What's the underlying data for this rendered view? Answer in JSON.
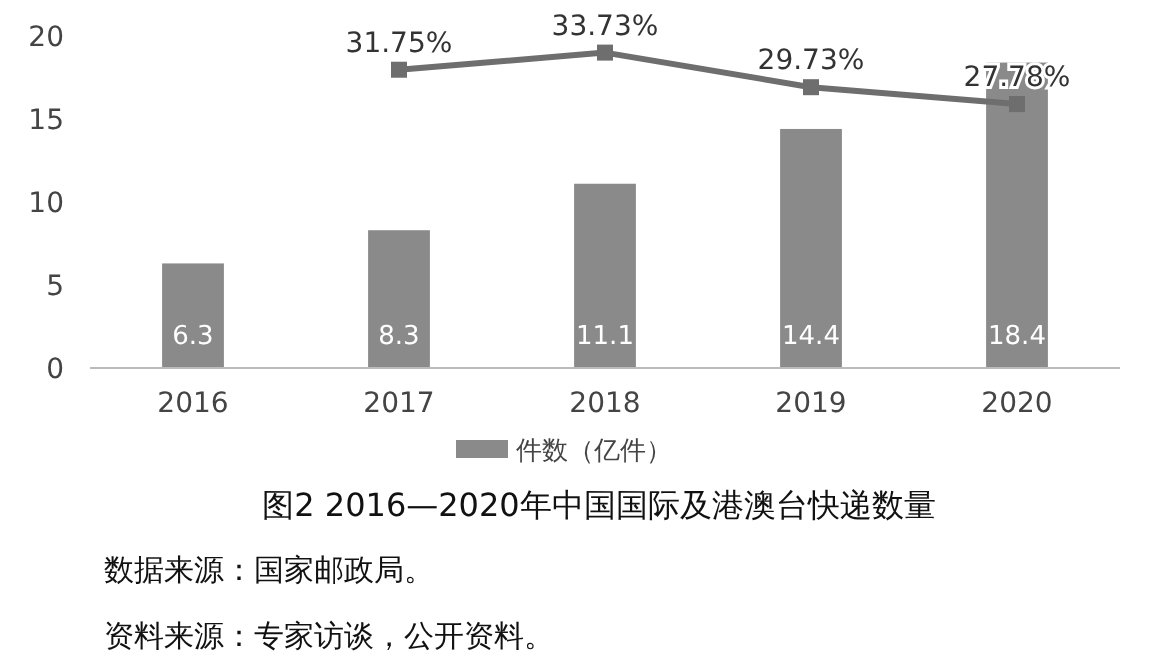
{
  "chart_data": {
    "type": "bar",
    "title": "图2  2016—2020年中国国际及港澳台快递数量",
    "categories": [
      "2016",
      "2017",
      "2018",
      "2019",
      "2020"
    ],
    "series": [
      {
        "name": "件数（亿件）",
        "color": "#8a8a8a",
        "values": [
          6.3,
          8.3,
          11.1,
          14.4,
          18.4
        ],
        "value_labels": [
          "6.3",
          "8.3",
          "11.1",
          "14.4",
          "18.4"
        ]
      },
      {
        "type": "line",
        "axis": "y2",
        "color": "#6e6e6e",
        "marker": "square",
        "values": [
          null,
          31.75,
          33.73,
          29.73,
          27.78
        ],
        "value_labels": [
          null,
          "31.75%",
          "33.73%",
          "29.73%",
          "27.78%"
        ]
      }
    ],
    "ylim": [
      0,
      20
    ],
    "yticks": [
      0,
      5,
      10,
      15,
      20
    ],
    "tick_labels": "xy",
    "legend": "bottom",
    "grid": false,
    "annotations": [
      "数据来源：国家邮政局。",
      "资料来源：专家访谈，公开资料。"
    ]
  }
}
